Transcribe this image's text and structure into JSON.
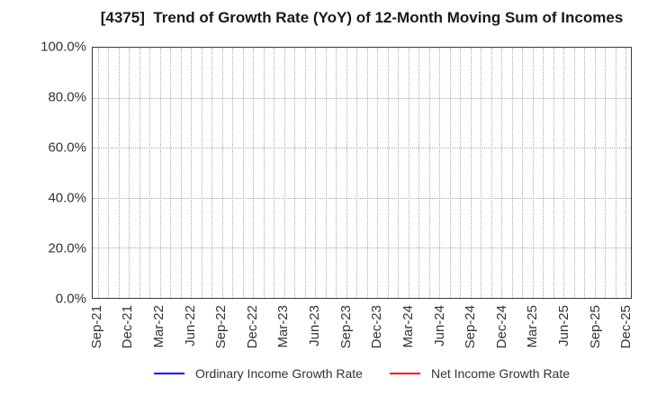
{
  "chart_data": {
    "type": "line",
    "title": "[4375]  Trend of Growth Rate (YoY) of 12-Month Moving Sum of Incomes",
    "x_tick_labels": [
      "Sep-21",
      "Dec-21",
      "Mar-22",
      "Jun-22",
      "Sep-22",
      "Dec-22",
      "Mar-23",
      "Jun-23",
      "Sep-23",
      "Dec-23",
      "Mar-24",
      "Jun-24",
      "Sep-24",
      "Dec-24",
      "Mar-25",
      "Jun-25",
      "Sep-25",
      "Dec-25"
    ],
    "x_total_month_ticks": 52,
    "x_label_every_n_ticks": 3,
    "x_labels_rotation_deg": 90,
    "y_tick_labels": [
      "0.0%",
      "20.0%",
      "40.0%",
      "60.0%",
      "80.0%",
      "100.0%"
    ],
    "y_tick_values": [
      0,
      20,
      40,
      60,
      80,
      100
    ],
    "ylim": [
      0,
      100
    ],
    "grid": "dotted",
    "legend_position": "bottom-center",
    "series": [
      {
        "name": "Ordinary Income Growth Rate",
        "color": "#0000ff",
        "values": []
      },
      {
        "name": "Net Income Growth Rate",
        "color": "#ff0000",
        "values": []
      }
    ]
  },
  "colors": {
    "background": "#ffffff",
    "title_text": "#1a1a1a",
    "tick_text": "#333333",
    "axis_border": "#3c3c3c",
    "gridline": "#ababab",
    "legend_text": "#333333"
  }
}
